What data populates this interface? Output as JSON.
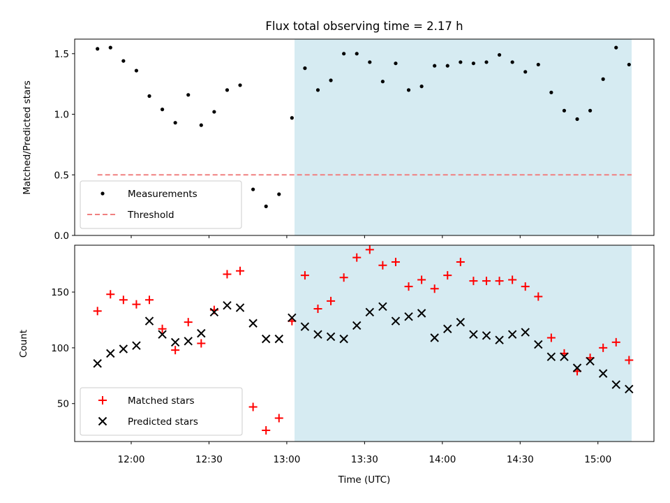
{
  "chart_data": [
    {
      "type": "scatter",
      "title": "Flux total observing time = 2.17 h",
      "xlabel": "",
      "ylabel": "Matched/Predicted stars",
      "ylim": [
        0,
        1.62
      ],
      "yticks": [
        0.0,
        0.5,
        1.0,
        1.5
      ],
      "ytick_labels": [
        "0.0",
        "0.5",
        "1.0",
        "1.5"
      ],
      "grid": false,
      "legend_position": "lower-left",
      "shaded_x_range": [
        "13:03",
        "15:13"
      ],
      "shade_color": "#add8e6",
      "series": [
        {
          "name": "Measurements",
          "kind": "point",
          "color": "#000000",
          "x": [
            "11:47",
            "11:52",
            "11:57",
            "12:02",
            "12:07",
            "12:12",
            "12:17",
            "12:22",
            "12:27",
            "12:32",
            "12:37",
            "12:42",
            "12:47",
            "12:52",
            "12:57",
            "13:02",
            "13:07",
            "13:12",
            "13:17",
            "13:22",
            "13:27",
            "13:32",
            "13:37",
            "13:42",
            "13:47",
            "13:52",
            "13:57",
            "14:02",
            "14:07",
            "14:12",
            "14:17",
            "14:22",
            "14:27",
            "14:32",
            "14:37",
            "14:42",
            "14:47",
            "14:52",
            "14:57",
            "15:02",
            "15:07",
            "15:12"
          ],
          "y": [
            1.54,
            1.55,
            1.44,
            1.36,
            1.15,
            1.04,
            0.93,
            1.16,
            0.91,
            1.02,
            1.2,
            1.24,
            0.38,
            0.24,
            0.34,
            0.97,
            1.38,
            1.2,
            1.28,
            1.5,
            1.5,
            1.43,
            1.27,
            1.42,
            1.2,
            1.23,
            1.4,
            1.4,
            1.43,
            1.42,
            1.43,
            1.49,
            1.43,
            1.35,
            1.41,
            1.18,
            1.03,
            0.96,
            1.03,
            1.29,
            1.55,
            1.41
          ]
        },
        {
          "name": "Threshold",
          "kind": "hline",
          "color": "#f08080",
          "value": 0.5,
          "x_range": [
            "11:47",
            "15:13"
          ]
        }
      ]
    },
    {
      "type": "scatter",
      "title": "",
      "xlabel": "Time (UTC)",
      "ylabel": "Count",
      "ylim": [
        16,
        192
      ],
      "yticks": [
        50,
        100,
        150
      ],
      "ytick_labels": [
        "50",
        "100",
        "150"
      ],
      "xticks": [
        "12:00",
        "12:30",
        "13:00",
        "13:30",
        "14:00",
        "14:30",
        "15:00"
      ],
      "grid": false,
      "legend_position": "lower-left",
      "shaded_x_range": [
        "13:03",
        "15:13"
      ],
      "shade_color": "#add8e6",
      "series": [
        {
          "name": "Matched stars",
          "marker": "plus",
          "color": "#ff0000",
          "x": [
            "11:47",
            "11:52",
            "11:57",
            "12:02",
            "12:07",
            "12:12",
            "12:17",
            "12:22",
            "12:27",
            "12:32",
            "12:37",
            "12:42",
            "12:47",
            "12:52",
            "12:57",
            "13:02",
            "13:07",
            "13:12",
            "13:17",
            "13:22",
            "13:27",
            "13:32",
            "13:37",
            "13:42",
            "13:47",
            "13:52",
            "13:57",
            "14:02",
            "14:07",
            "14:12",
            "14:17",
            "14:22",
            "14:27",
            "14:32",
            "14:37",
            "14:42",
            "14:47",
            "14:52",
            "14:57",
            "15:02",
            "15:07",
            "15:12"
          ],
          "y": [
            133,
            148,
            143,
            139,
            143,
            117,
            98,
            123,
            104,
            134,
            166,
            169,
            47,
            26,
            37,
            124,
            165,
            135,
            142,
            163,
            181,
            188,
            174,
            177,
            155,
            161,
            153,
            165,
            177,
            160,
            160,
            160,
            161,
            155,
            146,
            109,
            95,
            79,
            91,
            100,
            105,
            89
          ]
        },
        {
          "name": "Predicted stars",
          "marker": "x",
          "color": "#000000",
          "x": [
            "11:47",
            "11:52",
            "11:57",
            "12:02",
            "12:07",
            "12:12",
            "12:17",
            "12:22",
            "12:27",
            "12:32",
            "12:37",
            "12:42",
            "12:47",
            "12:52",
            "12:57",
            "13:02",
            "13:07",
            "13:12",
            "13:17",
            "13:22",
            "13:27",
            "13:32",
            "13:37",
            "13:42",
            "13:47",
            "13:52",
            "13:57",
            "14:02",
            "14:07",
            "14:12",
            "14:17",
            "14:22",
            "14:27",
            "14:32",
            "14:37",
            "14:42",
            "14:47",
            "14:52",
            "14:57",
            "15:02",
            "15:07",
            "15:12"
          ],
          "y": [
            86,
            95,
            99,
            102,
            124,
            112,
            105,
            106,
            113,
            132,
            138,
            136,
            122,
            108,
            108,
            127,
            119,
            112,
            110,
            108,
            120,
            132,
            137,
            124,
            128,
            131,
            109,
            117,
            123,
            112,
            111,
            107,
            112,
            114,
            103,
            92,
            92,
            82,
            88,
            77,
            67,
            63
          ]
        }
      ]
    }
  ]
}
